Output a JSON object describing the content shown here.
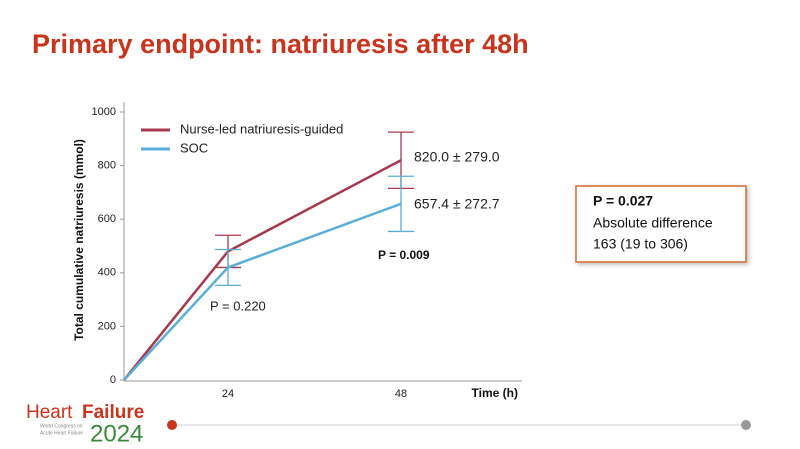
{
  "chart_data": {
    "type": "line",
    "title": "Primary endpoint: natriuresis after 48h",
    "y_label": "Total cumulative natriuresis (mmol)",
    "x_label": "Time (h)",
    "categories": [
      null,
      "24",
      "48"
    ],
    "ylim": [
      0,
      1000
    ],
    "yticks": [
      0,
      200,
      400,
      600,
      800,
      1000
    ],
    "series": [
      {
        "name": "Nurse-led natriuresis-guided",
        "color": "#a8384e",
        "values": [
          0,
          480,
          820
        ],
        "errors": [
          null,
          60,
          105
        ]
      },
      {
        "name": "SOC",
        "color": "#5aaed8",
        "values": [
          0,
          420,
          657.4
        ],
        "errors": [
          null,
          67,
          103
        ]
      }
    ],
    "annotations": [
      "820.0 ± 279.0",
      "657.4 ± 272.7",
      "P = 0.220",
      "P = 0.009"
    ],
    "box": {
      "p_value": "P = 0.027",
      "label": "Absolute difference",
      "difference": "163 (19 to 306)"
    },
    "logo": {
      "name_1": "Heart",
      "name_2": "Failure",
      "year": "2024",
      "subtitle_1": "World Congress on",
      "subtitle_2": "Acute Heart Failure"
    }
  }
}
